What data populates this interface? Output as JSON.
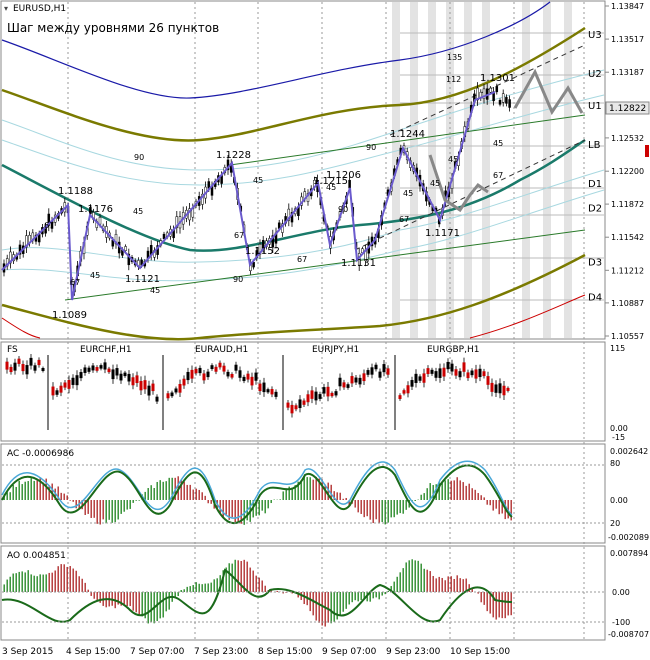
{
  "window": {
    "symbol_label": "EURUSD,H1",
    "subtitle": "Шаг между уровнями 26 пунктов"
  },
  "price_axis": {
    "ticks": [
      "1.13847",
      "1.13517",
      "1.13187",
      "1.12822",
      "1.12532",
      "1.12200",
      "1.11872",
      "1.11542",
      "1.11212",
      "1.10887",
      "1.10557"
    ],
    "current_price": "1.12822"
  },
  "levels": [
    {
      "label": "U3",
      "price": 1.1357
    },
    {
      "label": "U2",
      "price": 1.1318
    },
    {
      "label": "U1",
      "price": 1.1286
    },
    {
      "label": "LB",
      "price": 1.1247
    },
    {
      "label": "D1",
      "price": 1.1208
    },
    {
      "label": "D2",
      "price": 1.1184
    },
    {
      "label": "D3",
      "price": 1.113
    },
    {
      "label": "D4",
      "price": 1.1095
    }
  ],
  "annotations": [
    "1.1188",
    "1.1176",
    "1.1089",
    "1.1121",
    "1.1228",
    "1.1152",
    "1.1215",
    "1.1206",
    "1.1131",
    "1.1244",
    "1.1171",
    "1.1301",
    "90",
    "67",
    "45",
    "67",
    "45",
    "45",
    "90",
    "45",
    "67",
    "45",
    "67",
    "45",
    "90",
    "45",
    "67",
    "135",
    "112",
    "45",
    "67",
    "45",
    "90"
  ],
  "pairs_panel": {
    "label": "FS",
    "pairs": [
      "EURCHF,H1",
      "EURAUD,H1",
      "EURJPY,H1",
      "EURGBP,H1"
    ],
    "scale": [
      "115",
      "0.00",
      "-15"
    ]
  },
  "ac_panel": {
    "title": "AC -0.0006986",
    "scale": [
      "0.002642",
      "80",
      "0.00",
      "20",
      "-0.002089"
    ]
  },
  "ao_panel": {
    "title": "AO 0.004851",
    "scale": [
      "0.007894",
      "0.00",
      "-100",
      "-0.008707"
    ]
  },
  "time_axis": [
    "3 Sep 2015",
    "4 Sep 15:00",
    "7 Sep 07:00",
    "7 Sep 23:00",
    "8 Sep 15:00",
    "9 Sep 07:00",
    "9 Sep 23:00",
    "10 Sep 15:00"
  ],
  "chart_data": [
    {
      "type": "line",
      "title": "EURUSD,H1",
      "x": [
        "3 Sep 2015",
        "4 Sep 15:00",
        "7 Sep 07:00",
        "7 Sep 23:00",
        "8 Sep 15:00",
        "9 Sep 07:00",
        "9 Sep 23:00",
        "10 Sep 15:00"
      ],
      "ylim": [
        1.105,
        1.139
      ],
      "series": [
        {
          "name": "EURUSD,H1",
          "values": [
            1.113,
            1.116,
            1.1125,
            1.12,
            1.118,
            1.115,
            1.1225,
            1.1282
          ]
        }
      ],
      "grid": true
    }
  ]
}
